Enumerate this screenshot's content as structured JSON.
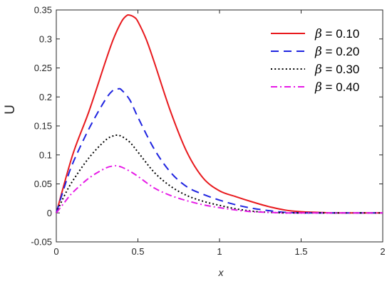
{
  "chart_data": {
    "type": "line",
    "xlabel": "x",
    "ylabel": "U",
    "xlim": [
      0,
      2
    ],
    "ylim": [
      -0.05,
      0.35
    ],
    "xticks": [
      0,
      0.5,
      1,
      1.5,
      2
    ],
    "xtick_labels": [
      "0",
      "0.5",
      "1",
      "1.5",
      "2"
    ],
    "yticks": [
      -0.05,
      0,
      0.05,
      0.1,
      0.15,
      0.2,
      0.25,
      0.3,
      0.35
    ],
    "ytick_labels": [
      "-0.05",
      "0",
      "0.05",
      "0.1",
      "0.15",
      "0.2",
      "0.25",
      "0.3",
      "0.35"
    ],
    "grid": false,
    "legend_position": "top-right",
    "series": [
      {
        "name": "β = 0.10",
        "legend_symbol": "β",
        "legend_value": " = 0.10",
        "color": "#e8191d",
        "dash": "solid",
        "x": [
          0,
          0.1,
          0.2,
          0.3,
          0.35,
          0.4,
          0.43,
          0.45,
          0.48,
          0.5,
          0.55,
          0.6,
          0.7,
          0.8,
          0.9,
          1.0,
          1.1,
          1.2,
          1.3,
          1.4,
          1.5,
          1.6,
          1.7,
          1.8,
          2.0
        ],
        "y": [
          0,
          0.1,
          0.175,
          0.26,
          0.3,
          0.33,
          0.34,
          0.341,
          0.337,
          0.33,
          0.3,
          0.26,
          0.175,
          0.105,
          0.06,
          0.038,
          0.028,
          0.019,
          0.011,
          0.005,
          0.002,
          0.001,
          0,
          0,
          0
        ]
      },
      {
        "name": "β = 0.20",
        "legend_symbol": "β",
        "legend_value": " = 0.20",
        "color": "#1f24e0",
        "dash": "dashed",
        "x": [
          0,
          0.05,
          0.1,
          0.2,
          0.3,
          0.35,
          0.38,
          0.4,
          0.45,
          0.5,
          0.6,
          0.7,
          0.8,
          0.9,
          1.0,
          1.1,
          1.2,
          1.3,
          1.4,
          1.5,
          1.6,
          2.0
        ],
        "y": [
          0,
          0.045,
          0.085,
          0.145,
          0.195,
          0.212,
          0.214,
          0.212,
          0.195,
          0.165,
          0.11,
          0.07,
          0.045,
          0.032,
          0.022,
          0.014,
          0.008,
          0.004,
          0.001,
          0,
          0,
          0
        ]
      },
      {
        "name": "β = 0.30",
        "legend_symbol": "β",
        "legend_value": " = 0.30",
        "color": "#000000",
        "dash": "dotted",
        "x": [
          0,
          0.05,
          0.1,
          0.2,
          0.3,
          0.35,
          0.37,
          0.4,
          0.45,
          0.5,
          0.6,
          0.7,
          0.8,
          0.9,
          1.0,
          1.1,
          1.2,
          1.3,
          1.4,
          1.5,
          2.0
        ],
        "y": [
          0,
          0.03,
          0.055,
          0.095,
          0.125,
          0.133,
          0.134,
          0.132,
          0.122,
          0.105,
          0.07,
          0.046,
          0.03,
          0.02,
          0.013,
          0.007,
          0.003,
          0.001,
          0,
          0,
          0
        ]
      },
      {
        "name": "β = 0.40",
        "legend_symbol": "β",
        "legend_value": " = 0.40",
        "color": "#e619e6",
        "dash": "dashdot",
        "x": [
          0,
          0.05,
          0.1,
          0.2,
          0.3,
          0.35,
          0.37,
          0.4,
          0.45,
          0.5,
          0.6,
          0.7,
          0.8,
          0.9,
          1.0,
          1.1,
          1.2,
          1.3,
          1.4,
          1.5,
          2.0
        ],
        "y": [
          0,
          0.018,
          0.035,
          0.06,
          0.077,
          0.081,
          0.081,
          0.079,
          0.072,
          0.063,
          0.043,
          0.03,
          0.021,
          0.014,
          0.009,
          0.005,
          0.002,
          0.001,
          0,
          0,
          0
        ]
      }
    ]
  }
}
